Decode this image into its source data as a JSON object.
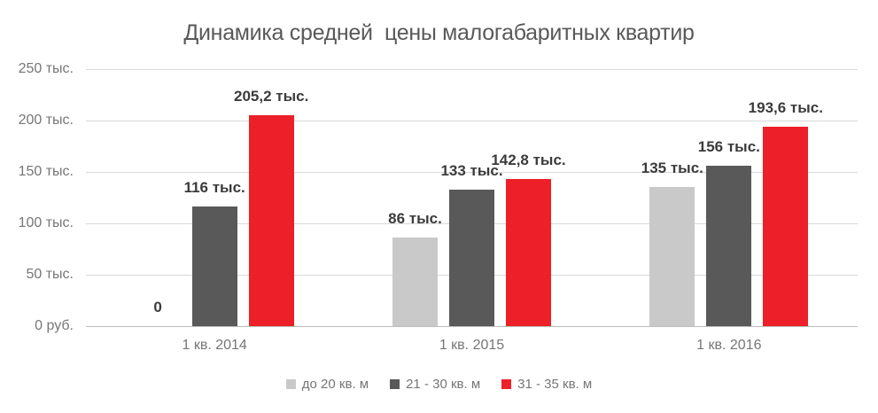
{
  "title": "Динамика средней  цены малогабаритных квартир",
  "chart_data": {
    "type": "bar",
    "title": "Динамика средней цены малогабаритных квартир",
    "categories": [
      "1 кв. 2014",
      "1 кв. 2015",
      "1 кв. 2016"
    ],
    "series": [
      {
        "name": "до 20 кв. м",
        "color": "#c9c9c9",
        "values": [
          0,
          86,
          135
        ],
        "value_labels": [
          "0",
          "86 тыс.",
          "135 тыс."
        ]
      },
      {
        "name": "21 - 30 кв. м",
        "color": "#595959",
        "values": [
          116,
          133,
          156
        ],
        "value_labels": [
          "116 тыс.",
          "133 тыс.",
          "156 тыс."
        ]
      },
      {
        "name": "31 - 35 кв. м",
        "color": "#ed1f28",
        "values": [
          205.2,
          142.8,
          193.6
        ],
        "value_labels": [
          "205,2 тыс.",
          "142,8 тыс.",
          "193,6 тыс."
        ]
      }
    ],
    "y_ticks": [
      {
        "value": 0,
        "label": "0 руб."
      },
      {
        "value": 50,
        "label": "50 тыс."
      },
      {
        "value": 100,
        "label": "100 тыс."
      },
      {
        "value": 150,
        "label": "150 тыс."
      },
      {
        "value": 200,
        "label": "200 тыс."
      },
      {
        "value": 250,
        "label": "250 тыс."
      }
    ],
    "ylim": [
      0,
      250
    ],
    "xlabel": "",
    "ylabel": "",
    "grid": true,
    "legend_position": "bottom"
  },
  "colors": {
    "background": "#ffffff",
    "title_text": "#595959",
    "axis_text": "#767676",
    "data_label_text": "#3b3b3b",
    "gridline": "#d9d9d9",
    "baseline": "#bdbdbd"
  }
}
